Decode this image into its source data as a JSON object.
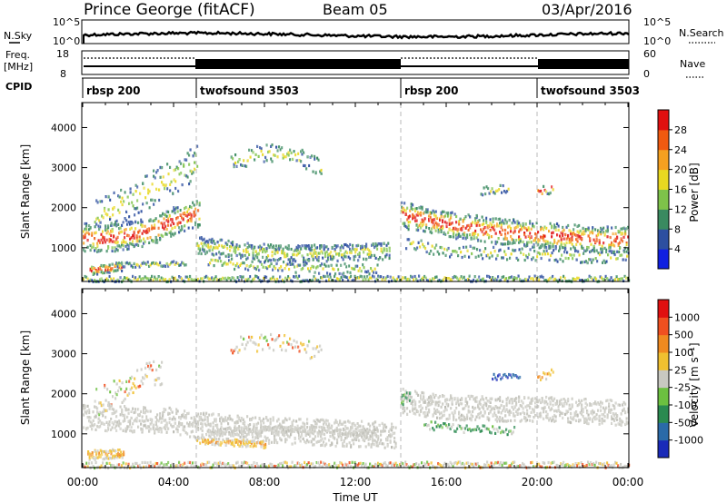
{
  "header": {
    "station": "Prince George (fitACF)",
    "beam": "Beam 05",
    "date": "03/Apr/2016"
  },
  "strips": {
    "nsky_label": "N.Sky",
    "nsky_ticks": [
      "10^5",
      "10^0"
    ],
    "nsearch_label": "N.Search",
    "nsearch_ticks": [
      "10^5",
      "10^0"
    ],
    "freq_label": "Freq.",
    "freq_unit": "[MHz]",
    "freq_ticks": [
      "18",
      "8"
    ],
    "nave_label": "Nave",
    "nave_ticks": [
      "60",
      "0"
    ],
    "cpid_label": "CPID"
  },
  "cpid_segments": [
    {
      "name": "rbsp 200",
      "start_h": 0
    },
    {
      "name": "twofsound 3503",
      "start_h": 5.0
    },
    {
      "name": "rbsp 200",
      "start_h": 14.0
    },
    {
      "name": "twofsound 3503",
      "start_h": 20.0
    }
  ],
  "axes": {
    "xlabel": "Time UT",
    "x_ticks": [
      "00:00",
      "04:00",
      "08:00",
      "12:00",
      "16:00",
      "20:00",
      "00:00"
    ],
    "ylabel": "Slant Range [km]",
    "y_ticks": [
      "1000",
      "2000",
      "3000",
      "4000"
    ]
  },
  "colorbars": {
    "power": {
      "label": "Power [dB]",
      "ticks": [
        "4",
        "8",
        "12",
        "16",
        "20",
        "24",
        "28"
      ],
      "colors": [
        "#1020e0",
        "#2d4fa0",
        "#3a8a60",
        "#7ec24a",
        "#e8d820",
        "#f5a020",
        "#f05a10",
        "#e01010"
      ]
    },
    "velocity": {
      "label": "Velocity [m s⁻¹]",
      "ticks": [
        "1000",
        "500",
        "100",
        "25",
        "-25",
        "-100",
        "-500",
        "-1000"
      ],
      "colors": [
        "#1a2ab8",
        "#2a6aa8",
        "#2a8a50",
        "#6cc040",
        "#c8c8c0",
        "#f0c030",
        "#f08a20",
        "#f05020",
        "#e01010"
      ]
    }
  },
  "chart_data": [
    {
      "type": "heatmap",
      "title": "Power",
      "xlabel": "Time UT",
      "ylabel": "Slant Range [km]",
      "xlim": [
        0,
        24
      ],
      "ylim": [
        180,
        4600
      ],
      "colorbar_range": [
        0,
        30
      ],
      "features": [
        {
          "name": "main band",
          "x": [
            0,
            1,
            2,
            3,
            4,
            5
          ],
          "y": [
            1300,
            1250,
            1350,
            1450,
            1700,
            1900
          ],
          "value": 24
        },
        {
          "name": "morning echo",
          "x": [
            0.5,
            1,
            1.5
          ],
          "y": [
            480,
            500,
            550
          ],
          "value": 26
        },
        {
          "name": "midday band",
          "x": [
            5,
            7,
            9,
            11,
            13
          ],
          "y": [
            1100,
            950,
            850,
            900,
            900
          ],
          "value": 14
        },
        {
          "name": "evening band",
          "x": [
            14,
            16,
            18,
            20,
            22,
            24
          ],
          "y": [
            1800,
            1600,
            1450,
            1350,
            1250,
            1200
          ],
          "value": 26
        }
      ]
    },
    {
      "type": "heatmap",
      "title": "Velocity",
      "xlabel": "Time UT",
      "ylabel": "Slant Range [km]",
      "xlim": [
        0,
        24
      ],
      "ylim": [
        180,
        4600
      ],
      "colorbar_range": [
        -1000,
        1000
      ],
      "features": [
        {
          "name": "ground scatter",
          "x": [
            0,
            5,
            10,
            14,
            19,
            24
          ],
          "y": [
            1500,
            1200,
            1100,
            1300,
            1600,
            1550
          ],
          "value": 0
        },
        {
          "name": "morning echo",
          "x": [
            0.5,
            1,
            1.5
          ],
          "y": [
            500,
            500,
            520
          ],
          "value": -300
        },
        {
          "name": "midday echo",
          "x": [
            5,
            6.5,
            8
          ],
          "y": [
            850,
            800,
            750
          ],
          "value": -200
        }
      ]
    }
  ]
}
